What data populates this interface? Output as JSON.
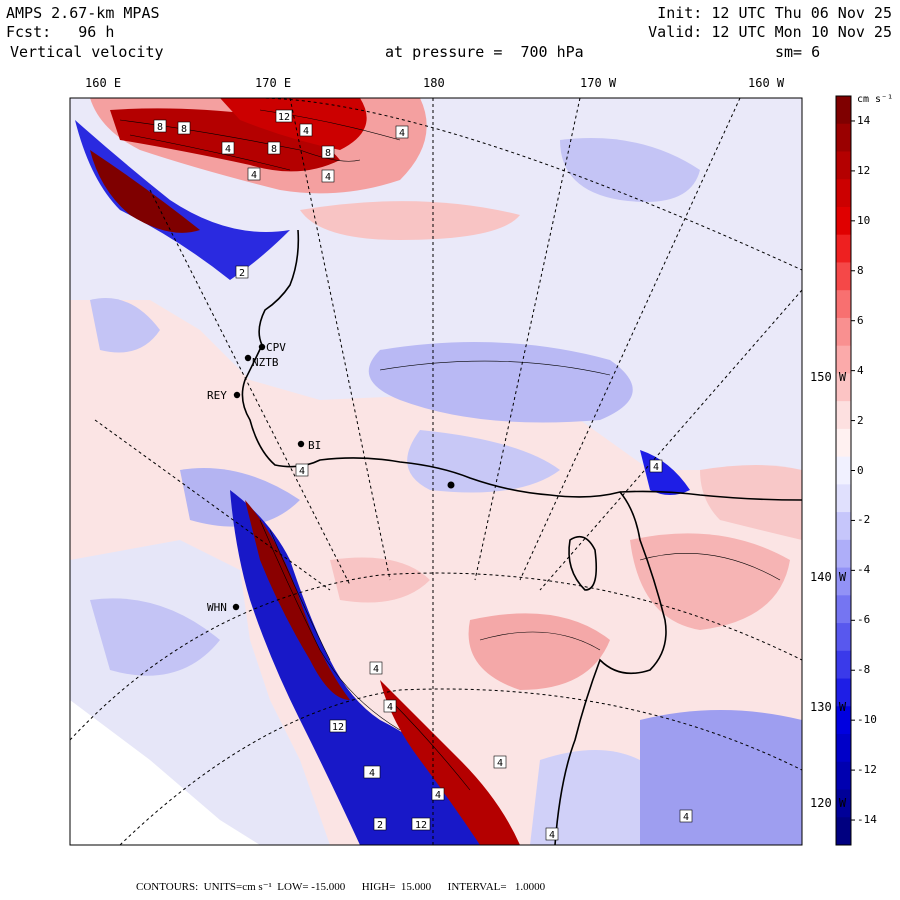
{
  "header": {
    "model": "AMPS 2.67-km MPAS",
    "forecast": "Fcst:   96 h",
    "field": "Vertical velocity",
    "init": "Init: 12 UTC Thu 06 Nov 25",
    "valid": "Valid: 12 UTC Mon 10 Nov 25",
    "pressure": "at pressure =  700 hPa",
    "smoothing": "sm= 6"
  },
  "top_ticks": [
    "160 E",
    "170 E",
    "180",
    "170 W",
    "160 W"
  ],
  "right_ticks": [
    "150 W",
    "140 W",
    "130 W",
    "120 W"
  ],
  "stations": [
    "CPV",
    "NZTB",
    "REY",
    "BI",
    "WHN"
  ],
  "colorbar": {
    "units_label": "cm s⁻¹",
    "labels": [
      "14",
      "12",
      "10",
      "8",
      "6",
      "4",
      "2",
      "0",
      "-2",
      "-4",
      "-6",
      "-8",
      "-10",
      "-12",
      "-14"
    ],
    "colors": [
      "#7f0000",
      "#9a0000",
      "#b40000",
      "#cc0000",
      "#e00000",
      "#ee2020",
      "#f54848",
      "#f87070",
      "#f99090",
      "#fbaaaa",
      "#fcc4c4",
      "#fde0e0",
      "#fff1f1",
      "#f1f1ff",
      "#e0e0fd",
      "#c6c6fb",
      "#aeaef9",
      "#9292f6",
      "#7575f2",
      "#5858ee",
      "#3a3aea",
      "#1e1ee6",
      "#0000e0",
      "#0000c8",
      "#0000b0",
      "#000098",
      "#000080"
    ]
  },
  "contour_labels": [
    "8",
    "8",
    "4",
    "8",
    "4",
    "4",
    "8",
    "4",
    "12",
    "4",
    "2",
    "4",
    "4",
    "4",
    "12",
    "12",
    "4",
    "4",
    "4",
    "4",
    "4",
    "2",
    "4"
  ],
  "footer": {
    "contours": "CONTOURS:  UNITS=cm s⁻¹  LOW= -15.000      HIGH=  15.000      INTERVAL=   1.0000"
  }
}
